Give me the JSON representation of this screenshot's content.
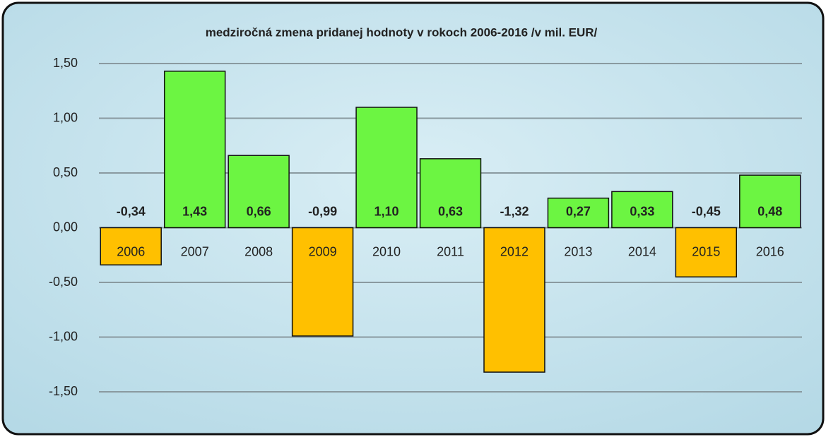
{
  "chart_data": {
    "type": "bar",
    "title": "medziročná zmena pridanej  hodnoty v rokoch 2006-2016 /v mil. EUR/",
    "categories": [
      "2006",
      "2007",
      "2008",
      "2009",
      "2010",
      "2011",
      "2012",
      "2013",
      "2014",
      "2015",
      "2016"
    ],
    "values": [
      -0.34,
      1.43,
      0.66,
      -0.99,
      1.1,
      0.63,
      -1.32,
      0.27,
      0.33,
      -0.45,
      0.48
    ],
    "value_labels": [
      "-0,34",
      "1,43",
      "0,66",
      "-0,99",
      "1,10",
      "0,63",
      "-1,32",
      "0,27",
      "0,33",
      "-0,45",
      "0,48"
    ],
    "colors": [
      "#ffc000",
      "#6cf542",
      "#6cf542",
      "#ffc000",
      "#6cf542",
      "#6cf542",
      "#ffc000",
      "#6cf542",
      "#6cf542",
      "#ffc000",
      "#6cf542"
    ],
    "ylim": [
      -1.5,
      1.5
    ],
    "yticks": [
      {
        "value": -1.5,
        "label": "-1,50"
      },
      {
        "value": -1,
        "label": "-1,00"
      },
      {
        "value": -0.5,
        "label": "-0,50"
      },
      {
        "value": 0,
        "label": "0,00"
      },
      {
        "value": 0.5,
        "label": "0,50"
      },
      {
        "value": 1,
        "label": "1,00"
      },
      {
        "value": 1.5,
        "label": "1,50"
      }
    ],
    "grid": true
  }
}
